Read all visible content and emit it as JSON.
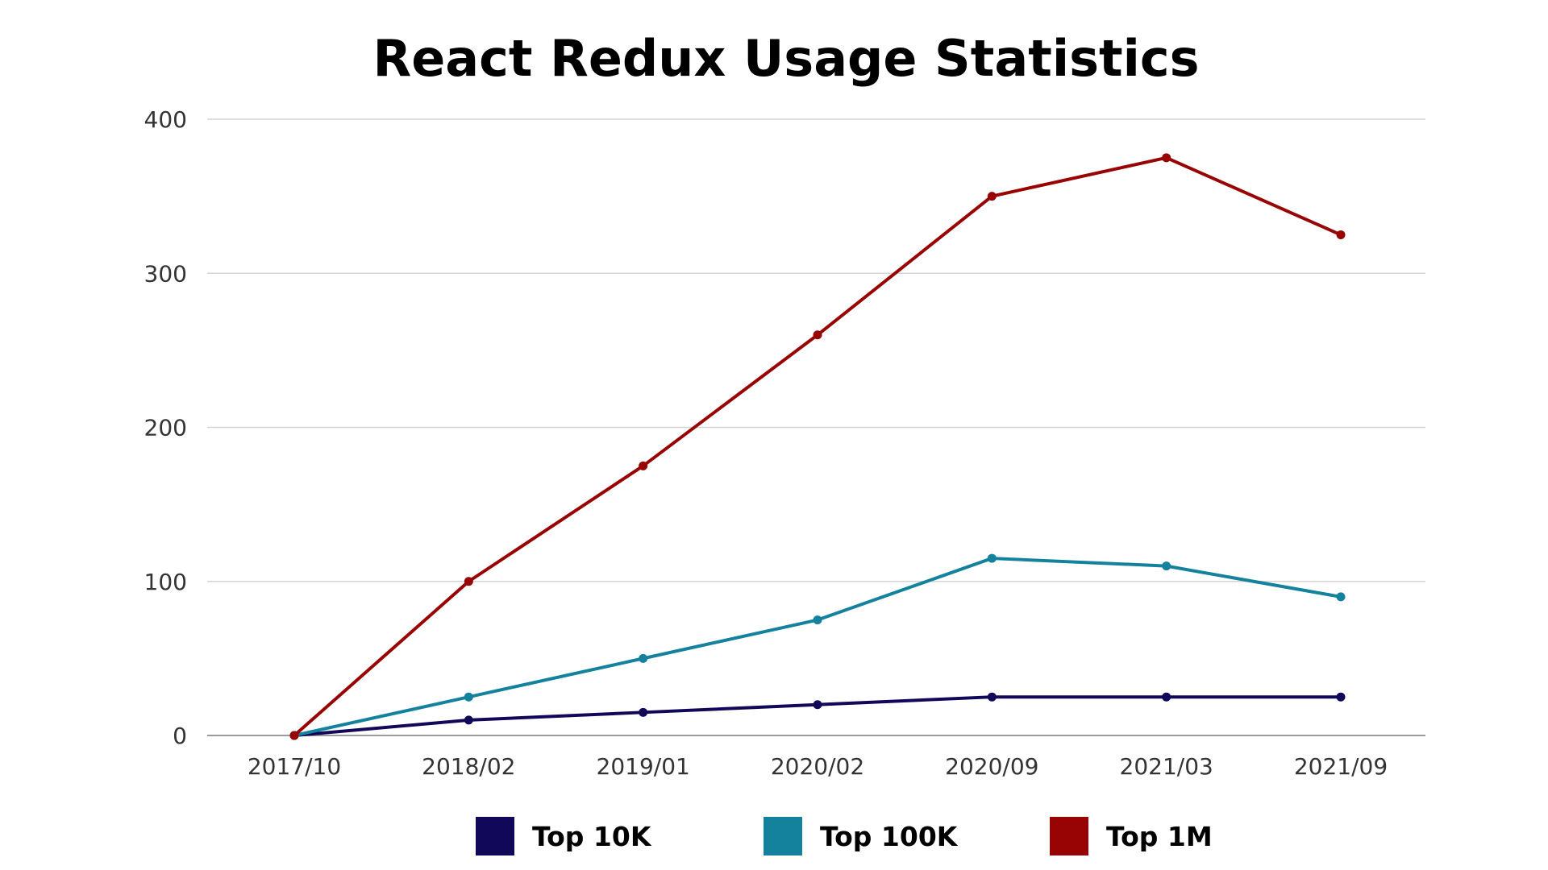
{
  "chart_data": {
    "type": "line",
    "title": "React Redux Usage Statistics",
    "xlabel": "",
    "ylabel": "",
    "categories": [
      "2017/10",
      "2018/02",
      "2019/01",
      "2020/02",
      "2020/09",
      "2021/03",
      "2021/09"
    ],
    "ylim": [
      0,
      400
    ],
    "yticks": [
      0,
      100,
      200,
      300,
      400
    ],
    "grid": true,
    "legend": "bottom",
    "series": [
      {
        "name": "Top 10K",
        "color": "#12085a",
        "values": [
          0,
          10,
          15,
          20,
          25,
          25,
          25
        ]
      },
      {
        "name": "Top 100K",
        "color": "#14819d",
        "values": [
          0,
          25,
          50,
          75,
          115,
          110,
          90
        ]
      },
      {
        "name": "Top 1M",
        "color": "#980404",
        "values": [
          0,
          100,
          175,
          260,
          350,
          375,
          325
        ]
      }
    ]
  }
}
